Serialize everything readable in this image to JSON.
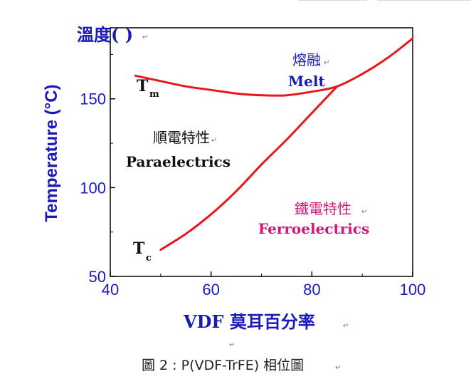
{
  "chart_data": {
    "type": "line",
    "title": "溫度( )",
    "xlabel": "VDF 莫耳百分率",
    "ylabel": "Temperature (°C)",
    "xlim": [
      40,
      100
    ],
    "ylim": [
      50,
      190
    ],
    "x_ticks": [
      "40",
      "60",
      "80",
      "100"
    ],
    "y_ticks": [
      "50",
      "100",
      "150"
    ],
    "grid": false,
    "legend": "none",
    "series": [
      {
        "x": [
          45,
          50,
          55,
          60,
          65,
          70,
          75,
          80,
          85,
          90,
          95,
          100
        ],
        "y": [
          163,
          160,
          157,
          155,
          153,
          152,
          152,
          154,
          157,
          164,
          173,
          184
        ]
      },
      {
        "x": [
          50,
          55,
          60,
          65,
          70,
          75,
          80,
          85
        ],
        "y": [
          65,
          74,
          85,
          98,
          113,
          127,
          142,
          157
        ]
      }
    ],
    "annotations": [
      {
        "text": "T",
        "sub": "m"
      },
      {
        "text": "T",
        "sub": "c"
      },
      {
        "text": "熔融"
      },
      {
        "text": "Melt"
      },
      {
        "text": "順電特性"
      },
      {
        "text": "Paraelectrics"
      },
      {
        "text": "鐵電特性"
      },
      {
        "text": "Ferroelectrics"
      }
    ],
    "caption": "圖 2 : P(VDF-TrFE) 相位圖"
  },
  "colors": {
    "curve": "#e8171b",
    "title": "#1a1ab8",
    "melt": "#1a1ab8",
    "ferro": "#d0187a"
  },
  "marks": {
    "paragraph": "↵"
  }
}
